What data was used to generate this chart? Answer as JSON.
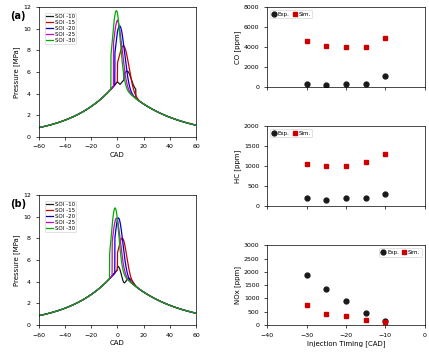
{
  "panel_a_label": "(a)",
  "panel_b_label": "(b)",
  "pressure_ylabel": "Pressure [MPa]",
  "cad_xlabel": "CAD",
  "injection_xlabel": "Injection Timing [CAD]",
  "legend_labels": [
    "SOI -10",
    "SOI -15",
    "SOI -20",
    "SOI -25",
    "SOI -30"
  ],
  "line_colors": [
    "#1a1a1a",
    "#cc0000",
    "#0000cc",
    "#cc00cc",
    "#00aa00"
  ],
  "co_ylabel": "CO [ppm]",
  "hc_ylabel": "HC [ppm]",
  "nox_ylabel": "NOx [ppm]",
  "co_ylim": [
    0,
    8000
  ],
  "hc_ylim": [
    0,
    2000
  ],
  "nox_ylim": [
    0,
    3000
  ],
  "co_yticks": [
    0,
    2000,
    4000,
    6000,
    8000
  ],
  "hc_yticks": [
    0,
    500,
    1000,
    1500,
    2000
  ],
  "nox_yticks": [
    0,
    500,
    1000,
    1500,
    2000,
    2500,
    3000
  ],
  "emission_xlim": [
    -40,
    0
  ],
  "emission_xticks": [
    -40,
    -30,
    -20,
    -10,
    0
  ],
  "injection_timings": [
    -30,
    -25,
    -20,
    -15,
    -10
  ],
  "co_exp": [
    300,
    150,
    250,
    300,
    1100
  ],
  "co_sim": [
    4600,
    4050,
    4000,
    4000,
    4850
  ],
  "hc_exp": [
    200,
    150,
    200,
    200,
    300
  ],
  "hc_sim": [
    1050,
    1000,
    1000,
    1100,
    1300
  ],
  "nox_exp": [
    1900,
    1350,
    900,
    450,
    150
  ],
  "nox_sim": [
    750,
    400,
    350,
    200,
    100
  ],
  "exp_color": "#1a1a1a",
  "sim_color": "#cc0000",
  "pressure_xlim": [
    -60,
    60
  ],
  "pressure_ylim": [
    0,
    12
  ],
  "pressure_xticks": [
    -60,
    -40,
    -20,
    0,
    20,
    40,
    60
  ],
  "pressure_yticks": [
    0,
    2,
    4,
    6,
    8,
    10,
    12
  ]
}
